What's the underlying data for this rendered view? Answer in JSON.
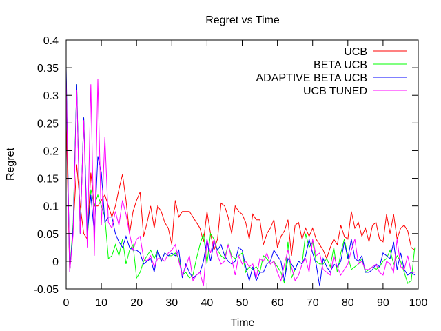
{
  "chart_data": {
    "type": "line",
    "title": "Regret vs Time",
    "xlabel": "Time",
    "ylabel": "Regret",
    "xlim": [
      0,
      100
    ],
    "ylim": [
      -0.05,
      0.4
    ],
    "xticks": [
      0,
      10,
      20,
      30,
      40,
      50,
      60,
      70,
      80,
      90,
      100
    ],
    "xtick_labels": [
      "0",
      "10",
      "20",
      "30",
      "40",
      "50",
      "60",
      "70",
      "80",
      "90",
      "100"
    ],
    "yticks": [
      -0.05,
      0,
      0.05,
      0.1,
      0.15,
      0.2,
      0.25,
      0.3,
      0.35,
      0.4
    ],
    "ytick_labels": [
      "-0.05",
      "0",
      "0.05",
      "0.1",
      "0.15",
      "0.2",
      "0.25",
      "0.3",
      "0.35",
      "0.4"
    ],
    "grid": false,
    "legend_position": "top-right",
    "series": [
      {
        "name": "UCB",
        "color": "#ff0000",
        "x": [
          0,
          1,
          2,
          3,
          4,
          5,
          6,
          7,
          8,
          9,
          10,
          11,
          12,
          13,
          14,
          15,
          16,
          17,
          18,
          19,
          20,
          21,
          22,
          23,
          24,
          25,
          26,
          27,
          28,
          29,
          30,
          31,
          32,
          33,
          34,
          35,
          36,
          37,
          38,
          39,
          40,
          41,
          42,
          43,
          44,
          45,
          46,
          47,
          48,
          49,
          50,
          51,
          52,
          53,
          54,
          55,
          56,
          57,
          58,
          59,
          60,
          61,
          62,
          63,
          64,
          65,
          66,
          67,
          68,
          69,
          70,
          71,
          72,
          73,
          74,
          75,
          76,
          77,
          78,
          79,
          80,
          81,
          82,
          83,
          84,
          85,
          86,
          87,
          88,
          89,
          90,
          91,
          92,
          93,
          94,
          95,
          96,
          97,
          98,
          99
        ],
        "values": [
          0.26,
          -0.02,
          0.06,
          0.175,
          0.1,
          0.05,
          0.04,
          0.16,
          0.1,
          0.1,
          0.11,
          0.12,
          0.1,
          0.08,
          0.1,
          0.13,
          0.157,
          0.11,
          0.05,
          0.09,
          0.11,
          0.125,
          0.045,
          0.07,
          0.1,
          0.06,
          0.1,
          0.09,
          0.07,
          0.06,
          0.03,
          0.11,
          0.08,
          0.09,
          0.09,
          0.09,
          0.08,
          0.07,
          0.06,
          0.035,
          0.09,
          0.05,
          0.02,
          0.04,
          0.105,
          0.1,
          0.08,
          0.05,
          0.1,
          0.09,
          0.085,
          0.07,
          0.04,
          0.085,
          0.075,
          0.075,
          0.03,
          0.05,
          0.06,
          0.075,
          0.025,
          0.045,
          0.055,
          0.075,
          0.01,
          0.065,
          0.07,
          0.04,
          0.06,
          0.045,
          0.06,
          0.04,
          0.03,
          0.02,
          0.005,
          0.025,
          0.04,
          0.03,
          0.065,
          0.045,
          0.04,
          0.09,
          0.06,
          0.07,
          0.045,
          0.06,
          0.035,
          0.065,
          0.07,
          0.04,
          0.035,
          0.085,
          0.05,
          0.085,
          0.04,
          0.06,
          0.065,
          0.055,
          0.025,
          0.02
        ]
      },
      {
        "name": "BETA UCB",
        "color": "#00ff00",
        "x": [
          0,
          1,
          2,
          3,
          4,
          5,
          6,
          7,
          8,
          9,
          10,
          11,
          12,
          13,
          14,
          15,
          16,
          17,
          18,
          19,
          20,
          21,
          22,
          23,
          24,
          25,
          26,
          27,
          28,
          29,
          30,
          31,
          32,
          33,
          34,
          35,
          36,
          37,
          38,
          39,
          40,
          41,
          42,
          43,
          44,
          45,
          46,
          47,
          48,
          49,
          50,
          51,
          52,
          53,
          54,
          55,
          56,
          57,
          58,
          59,
          60,
          61,
          62,
          63,
          64,
          65,
          66,
          67,
          68,
          69,
          70,
          71,
          72,
          73,
          74,
          75,
          76,
          77,
          78,
          79,
          80,
          81,
          82,
          83,
          84,
          85,
          86,
          87,
          88,
          89,
          90,
          91,
          92,
          93,
          94,
          95,
          96,
          97,
          98,
          99
        ],
        "values": [
          0.33,
          -0.02,
          0.07,
          0.32,
          0.05,
          0.26,
          0.04,
          0.13,
          0.1,
          0.12,
          0.1,
          0.08,
          0.005,
          0.01,
          0.03,
          0.01,
          0.04,
          -0.005,
          0.02,
          0.03,
          -0.03,
          -0.02,
          0.0,
          0.01,
          0.02,
          0.005,
          0.02,
          0.0,
          0.015,
          0.01,
          0.01,
          0.015,
          0.005,
          -0.025,
          -0.02,
          -0.03,
          -0.025,
          0.005,
          0.03,
          0.05,
          -0.005,
          0.05,
          0.04,
          0.02,
          0.01,
          0.005,
          0.03,
          0.01,
          0.005,
          0.01,
          0.015,
          -0.02,
          -0.01,
          -0.015,
          -0.01,
          -0.02,
          0.01,
          0.005,
          -0.005,
          0.0,
          -0.01,
          -0.02,
          -0.04,
          0.035,
          -0.03,
          -0.015,
          0.0,
          -0.005,
          0.05,
          0.025,
          0.035,
          0.0,
          -0.005,
          -0.005,
          0.005,
          -0.01,
          0.025,
          -0.02,
          0.015,
          0.04,
          0.01,
          -0.015,
          -0.01,
          -0.005,
          0.005,
          -0.02,
          -0.015,
          -0.01,
          -0.015,
          -0.01,
          0.0,
          0.005,
          0.02,
          -0.005,
          0.01,
          0.0,
          -0.02,
          -0.04,
          -0.035,
          0.025
        ]
      },
      {
        "name": "ADAPTIVE BETA UCB",
        "color": "#0000ff",
        "x": [
          0,
          1,
          2,
          3,
          4,
          5,
          6,
          7,
          8,
          9,
          10,
          11,
          12,
          13,
          14,
          15,
          16,
          17,
          18,
          19,
          20,
          21,
          22,
          23,
          24,
          25,
          26,
          27,
          28,
          29,
          30,
          31,
          32,
          33,
          34,
          35,
          36,
          37,
          38,
          39,
          40,
          41,
          42,
          43,
          44,
          45,
          46,
          47,
          48,
          49,
          50,
          51,
          52,
          53,
          54,
          55,
          56,
          57,
          58,
          59,
          60,
          61,
          62,
          63,
          64,
          65,
          66,
          67,
          68,
          69,
          70,
          71,
          72,
          73,
          74,
          75,
          76,
          77,
          78,
          79,
          80,
          81,
          82,
          83,
          84,
          85,
          86,
          87,
          88,
          89,
          90,
          91,
          92,
          93,
          94,
          95,
          96,
          97,
          98,
          99
        ],
        "values": [
          0.35,
          -0.02,
          0.06,
          0.32,
          0.05,
          0.26,
          0.05,
          0.12,
          0.05,
          0.19,
          0.16,
          0.07,
          0.08,
          0.08,
          0.05,
          0.035,
          0.025,
          0.045,
          0.025,
          0.02,
          0.02,
          0.015,
          -0.005,
          0.0,
          0.005,
          -0.02,
          0.02,
          0.0,
          0.015,
          0.01,
          0.015,
          0.01,
          0.02,
          -0.03,
          -0.005,
          -0.02,
          -0.03,
          -0.025,
          -0.02,
          0.0,
          0.04,
          0.0,
          0.035,
          0.02,
          0.03,
          0.01,
          0.0,
          -0.005,
          0.0,
          0.025,
          0.02,
          -0.01,
          -0.035,
          -0.01,
          -0.035,
          -0.02,
          -0.02,
          -0.005,
          0.0,
          0.02,
          0.01,
          0.0,
          -0.035,
          0.005,
          -0.005,
          -0.015,
          0.0,
          -0.005,
          0.01,
          0.04,
          0.015,
          -0.005,
          -0.045,
          0.005,
          -0.01,
          -0.02,
          -0.005,
          -0.01,
          0.0,
          0.035,
          0.005,
          0.04,
          0.005,
          0.0,
          0.01,
          -0.02,
          -0.02,
          -0.015,
          -0.005,
          -0.01,
          0.015,
          0.01,
          0.005,
          0.035,
          -0.015,
          0.015,
          -0.015,
          -0.025,
          -0.02,
          -0.025
        ]
      },
      {
        "name": "UCB TUNED",
        "color": "#ff00ff",
        "x": [
          0,
          1,
          2,
          3,
          4,
          5,
          6,
          7,
          8,
          9,
          10,
          11,
          12,
          13,
          14,
          15,
          16,
          17,
          18,
          19,
          20,
          21,
          22,
          23,
          24,
          25,
          26,
          27,
          28,
          29,
          30,
          31,
          32,
          33,
          34,
          35,
          36,
          37,
          38,
          39,
          40,
          41,
          42,
          43,
          44,
          45,
          46,
          47,
          48,
          49,
          50,
          51,
          52,
          53,
          54,
          55,
          56,
          57,
          58,
          59,
          60,
          61,
          62,
          63,
          64,
          65,
          66,
          67,
          68,
          69,
          70,
          71,
          72,
          73,
          74,
          75,
          76,
          77,
          78,
          79,
          80,
          81,
          82,
          83,
          84,
          85,
          86,
          87,
          88,
          89,
          90,
          91,
          92,
          93,
          94,
          95,
          96,
          97,
          98,
          99
        ],
        "values": [
          0.33,
          -0.02,
          0.05,
          0.31,
          0.05,
          0.255,
          0.025,
          0.32,
          0.01,
          0.33,
          0.065,
          0.225,
          0.07,
          0.06,
          0.09,
          0.065,
          0.11,
          0.085,
          0.05,
          0.02,
          0.04,
          0.045,
          0.005,
          0.0,
          0.01,
          -0.01,
          0.005,
          0.005,
          0.0,
          0.015,
          0.02,
          0.03,
          0.0,
          -0.025,
          -0.01,
          0.01,
          -0.035,
          -0.025,
          -0.02,
          -0.045,
          0.04,
          0.015,
          0.04,
          0.01,
          -0.005,
          0.0,
          0.03,
          0.005,
          -0.025,
          0.01,
          -0.005,
          0.0,
          -0.01,
          -0.005,
          -0.03,
          0.005,
          0.0,
          0.015,
          -0.005,
          0.0,
          -0.02,
          -0.035,
          -0.005,
          0.02,
          -0.01,
          -0.035,
          -0.025,
          -0.005,
          0.005,
          -0.02,
          0.04,
          0.01,
          0.015,
          -0.015,
          -0.02,
          -0.025,
          0.01,
          -0.01,
          -0.025,
          -0.015,
          -0.005,
          0.02,
          0.04,
          -0.005,
          0.0,
          -0.015,
          -0.015,
          -0.01,
          -0.005,
          -0.02,
          -0.025,
          0.0,
          -0.005,
          -0.02,
          0.04,
          -0.01,
          -0.015,
          0.01,
          -0.02,
          -0.02
        ]
      }
    ]
  }
}
